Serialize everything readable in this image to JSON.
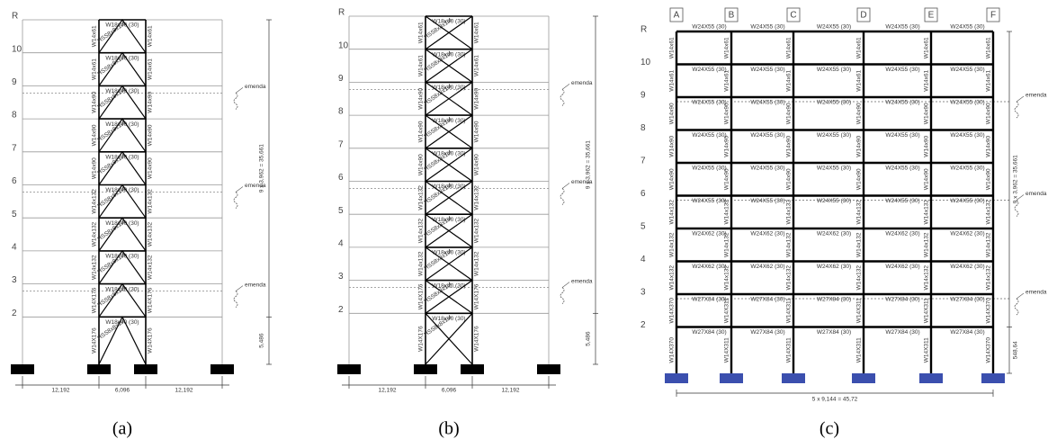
{
  "panels": [
    {
      "caption": "(a)",
      "levels": [
        "R",
        "10",
        "9",
        "8",
        "7",
        "6",
        "5",
        "4",
        "3",
        "2"
      ],
      "beams": [
        "W18x40 (30)",
        "W18x40 (30)",
        "W18x40 (30)",
        "W18x40 (30)",
        "W18x40 (30)",
        "W18x40 (30)",
        "W18x40 (30)",
        "W18x40 (30)",
        "W18x40 (30)",
        "W18x40 (30)"
      ],
      "columns": [
        "W14x61",
        "W14x61",
        "W14x90",
        "W14x90",
        "W14x90",
        "W14x132",
        "W14x132",
        "W14x132",
        "W14X176",
        "W14X176"
      ],
      "brace": "HSS8x8x1/4",
      "splice_label": "emenda",
      "height_dim": "9 x 3,962 = 35,661",
      "base_dim": "5,486",
      "spans": [
        "12,192",
        "6,096",
        "12,192"
      ]
    },
    {
      "caption": "(b)",
      "levels": [
        "R",
        "10",
        "9",
        "8",
        "7",
        "6",
        "5",
        "4",
        "3",
        "2"
      ],
      "beams": [
        "W18x40 (30)",
        "W18x40 (30)",
        "W18x40 (30)",
        "W18x40 (30)",
        "W18x40 (30)",
        "W18x40 (30)",
        "W18x40 (30)",
        "W18x40 (30)",
        "W18x40 (30)",
        "W18x40 (30)"
      ],
      "columns": [
        "W14x61",
        "W14x61",
        "W14x90",
        "W14x90",
        "W14x90",
        "W14x132",
        "W14x132",
        "W14x132",
        "W14X176",
        "W14X176"
      ],
      "brace": "HSS8x8x1/4",
      "splice_label": "emenda",
      "height_dim": "9 x 3,962 = 35,661",
      "base_dim": "5,486",
      "spans": [
        "12,192",
        "6,096",
        "12,192"
      ]
    },
    {
      "caption": "(c)",
      "levels": [
        "R",
        "10",
        "9",
        "8",
        "7",
        "6",
        "5",
        "4",
        "3",
        "2"
      ],
      "axes": [
        "A",
        "B",
        "C",
        "D",
        "E",
        "F"
      ],
      "beams": [
        "W24X55 (30)",
        "W24X55 (30)",
        "W24X55 (30)",
        "W24X55 (30)",
        "W24X55 (30)",
        "W24X55 (30)",
        "W24X62 (30)",
        "W24X62 (30)",
        "W27X84 (30)",
        "W27X84 (30)"
      ],
      "outer_columns": [
        "W14x61",
        "W14x61",
        "W14x90",
        "W14x90",
        "W14x90",
        "W14x132",
        "W14x132",
        "W14x132",
        "W14X370",
        "W14X370"
      ],
      "inner_columns": [
        "W14x61",
        "W14x61",
        "W14x90",
        "W14x90",
        "W14x90",
        "W14x132",
        "W14x132",
        "W14x132",
        "W14X311",
        "W14X311"
      ],
      "splice_label": "emenda",
      "height_dim": "9 x 3,962 = 35,661",
      "base_dim": "548,64",
      "span_dim": "5 x 9,144 = 45,72"
    }
  ]
}
